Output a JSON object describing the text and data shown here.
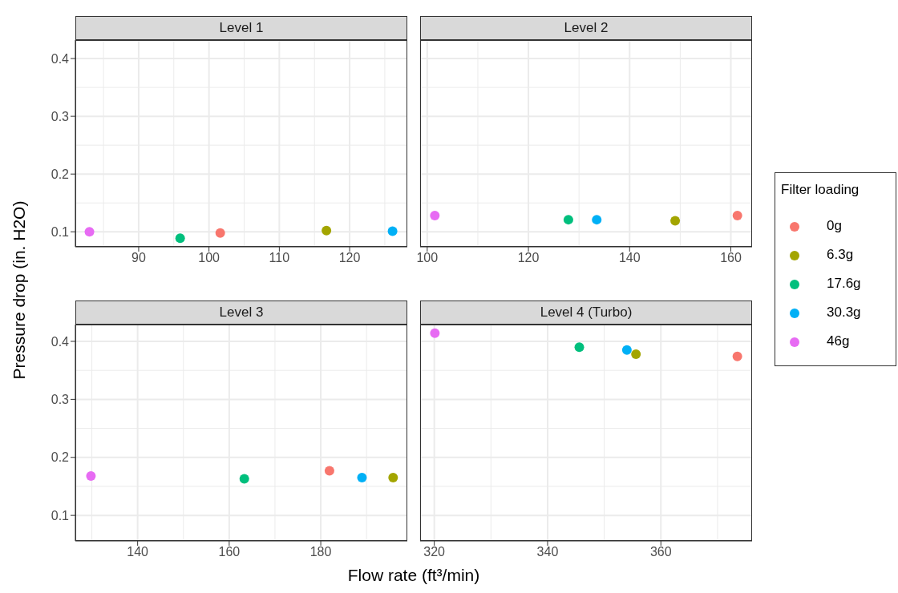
{
  "chart_data": [
    {
      "type": "scatter",
      "title": "Level 1",
      "ylabel": "Pressure drop (in. H2O)",
      "xlim": [
        81,
        128.2
      ],
      "xticks": [
        90,
        100,
        110,
        120
      ],
      "ylim": [
        0.074,
        0.432
      ],
      "yticks": [
        0.1,
        0.2,
        0.3,
        0.4
      ],
      "grid": true,
      "marker": "circle",
      "series": [
        {
          "color": "#f8766d",
          "x": [
            101.6
          ],
          "values": [
            0.098
          ]
        },
        {
          "color": "#a3a500",
          "x": [
            116.7
          ],
          "values": [
            0.102
          ]
        },
        {
          "color": "#00bf7d",
          "x": [
            95.9
          ],
          "values": [
            0.089
          ]
        },
        {
          "color": "#00b0f6",
          "x": [
            126.1
          ],
          "values": [
            0.101
          ]
        },
        {
          "color": "#e76bf3",
          "x": [
            83.0
          ],
          "values": [
            0.1
          ]
        }
      ]
    },
    {
      "type": "scatter",
      "title": "Level 2",
      "legend": "right",
      "legend_title": "Filter loading",
      "xlim": [
        98.6,
        164.2
      ],
      "xticks": [
        100,
        120,
        140,
        160
      ],
      "ylim": [
        0.074,
        0.432
      ],
      "yticks": [
        0.1,
        0.2,
        0.3,
        0.4
      ],
      "tick_labels": "x",
      "grid": true,
      "marker": "circle",
      "series": [
        {
          "name": "0g",
          "color": "#f8766d",
          "x": [
            161.3
          ],
          "values": [
            0.128
          ]
        },
        {
          "name": "6.3g",
          "color": "#a3a500",
          "x": [
            149.0
          ],
          "values": [
            0.119
          ]
        },
        {
          "name": "17.6g",
          "color": "#00bf7d",
          "x": [
            127.9
          ],
          "values": [
            0.121
          ]
        },
        {
          "name": "30.3g",
          "color": "#00b0f6",
          "x": [
            133.5
          ],
          "values": [
            0.121
          ]
        },
        {
          "name": "46g",
          "color": "#e76bf3",
          "x": [
            101.5
          ],
          "values": [
            0.128
          ]
        }
      ]
    },
    {
      "type": "scatter",
      "title": "Level 3",
      "xlabel": "Flow rate (ft³/min)",
      "xlim": [
        126.4,
        198.9
      ],
      "xticks": [
        140,
        160,
        180
      ],
      "ylim": [
        0.056,
        0.429
      ],
      "yticks": [
        0.1,
        0.2,
        0.3,
        0.4
      ],
      "grid": true,
      "marker": "circle",
      "series": [
        {
          "color": "#f8766d",
          "x": [
            181.9
          ],
          "values": [
            0.177
          ]
        },
        {
          "color": "#a3a500",
          "x": [
            195.8
          ],
          "values": [
            0.165
          ]
        },
        {
          "color": "#00bf7d",
          "x": [
            163.3
          ],
          "values": [
            0.163
          ]
        },
        {
          "color": "#00b0f6",
          "x": [
            189.0
          ],
          "values": [
            0.165
          ]
        },
        {
          "color": "#e76bf3",
          "x": [
            129.8
          ],
          "values": [
            0.168
          ]
        }
      ]
    },
    {
      "type": "scatter",
      "title": "Level 4 (Turbo)",
      "xlim": [
        317.5,
        376.1
      ],
      "xticks": [
        320,
        340,
        360
      ],
      "ylim": [
        0.056,
        0.429
      ],
      "yticks": [
        0.1,
        0.2,
        0.3,
        0.4
      ],
      "tick_labels": "x",
      "grid": true,
      "marker": "circle",
      "series": [
        {
          "color": "#f8766d",
          "x": [
            373.5
          ],
          "values": [
            0.374
          ]
        },
        {
          "color": "#a3a500",
          "x": [
            355.6
          ],
          "values": [
            0.378
          ]
        },
        {
          "color": "#00bf7d",
          "x": [
            345.6
          ],
          "values": [
            0.39
          ]
        },
        {
          "color": "#00b0f6",
          "x": [
            354.0
          ],
          "values": [
            0.385
          ]
        },
        {
          "color": "#e76bf3",
          "x": [
            320.1
          ],
          "values": [
            0.414
          ]
        }
      ]
    }
  ]
}
